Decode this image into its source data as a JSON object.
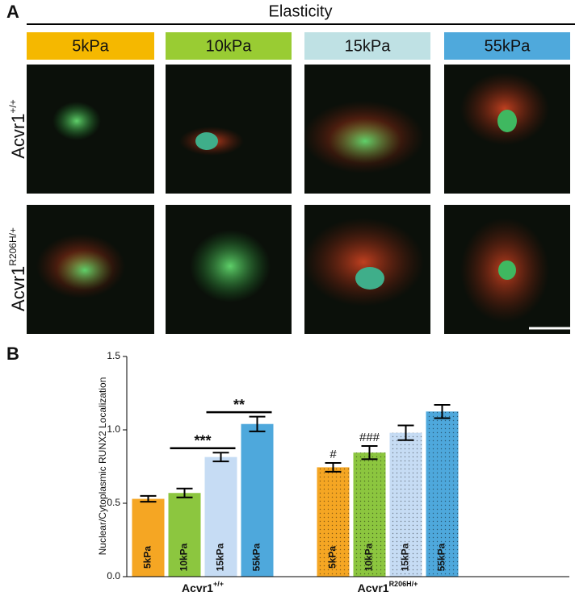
{
  "panel_a": {
    "label": "A",
    "title": "Elasticity",
    "columns": [
      "5kPa",
      "10kPa",
      "15kPa",
      "55kPa"
    ],
    "rows": [
      {
        "base": "Acvr1",
        "sup": "+/+"
      },
      {
        "base": "Acvr1",
        "sup": "R206H/+"
      }
    ]
  },
  "chart_data": {
    "type": "bar",
    "panel_label": "B",
    "ylabel": "Nuclear/Cytoplasmic RUNX2 Localization",
    "categories": [
      {
        "base": "Acvr1",
        "sup": "+/+"
      },
      {
        "base": "Acvr1",
        "sup": "R206H/+"
      }
    ],
    "series": [
      {
        "name": "5kPa",
        "color": "#f5a623",
        "values": [
          0.53,
          0.745
        ],
        "errors": [
          0.02,
          0.03
        ],
        "significance": [
          null,
          "#"
        ]
      },
      {
        "name": "10kPa",
        "color": "#8cc63f",
        "values": [
          0.57,
          0.845
        ],
        "errors": [
          0.03,
          0.045
        ],
        "significance": [
          null,
          "###"
        ]
      },
      {
        "name": "15kPa",
        "color": "#c6dcf4",
        "values": [
          0.815,
          0.98
        ],
        "errors": [
          0.03,
          0.05
        ],
        "bracket_significance": [
          "***",
          null
        ]
      },
      {
        "name": "55kPa",
        "color": "#4ea8dc",
        "values": [
          1.04,
          1.125
        ],
        "errors": [
          0.05,
          0.045
        ],
        "bracket_significance": [
          "**",
          null
        ]
      }
    ],
    "ylim": [
      0,
      1.5
    ],
    "yticks": [
      {
        "value": 0,
        "label": "0.0"
      },
      {
        "value": 0.5,
        "label": "0.5"
      },
      {
        "value": 1,
        "label": "1.0"
      },
      {
        "value": 1.5,
        "label": "1.5"
      }
    ]
  }
}
